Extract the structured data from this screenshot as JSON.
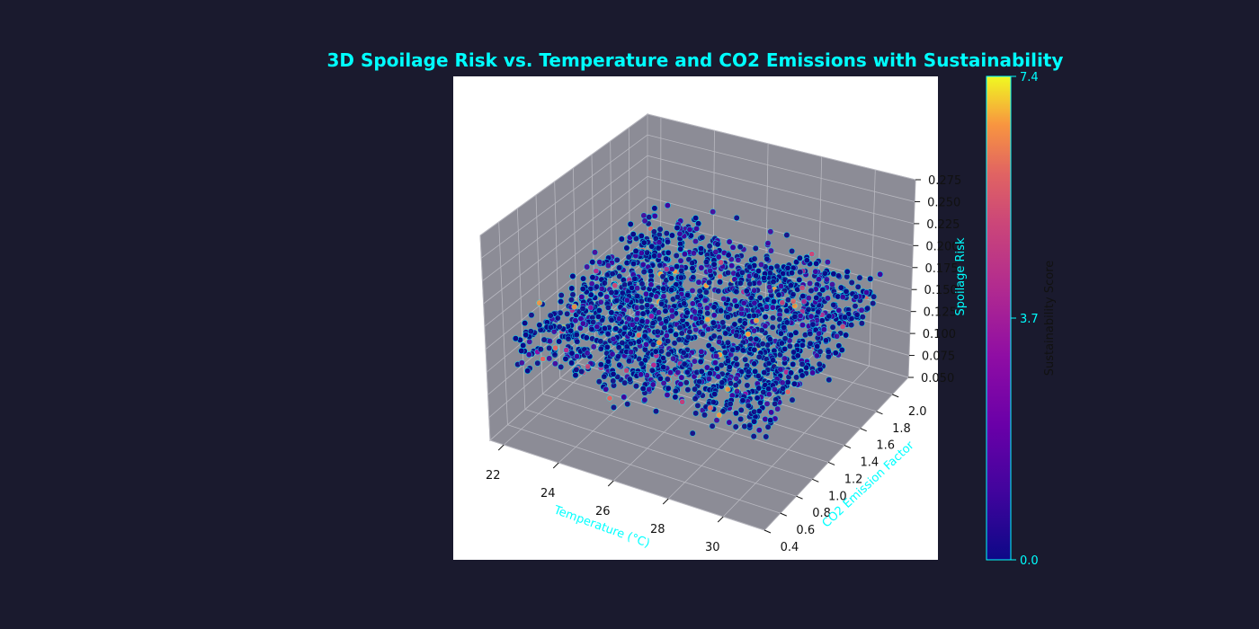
{
  "chart_data": {
    "type": "scatter",
    "projection": "3d",
    "title": "3D Spoilage Risk vs. Temperature and CO2 Emissions with Sustainability",
    "xlabel": "Temperature (°C)",
    "ylabel": "CO2 Emission Factor",
    "zlabel": "Spoilage Risk",
    "colorbar_label": "Sustainability Score",
    "xlim": [
      21.5,
      31.5
    ],
    "ylim": [
      0.4,
      2.2
    ],
    "zlim": [
      0.05,
      0.275
    ],
    "x_ticks": [
      "22",
      "24",
      "26",
      "28",
      "30"
    ],
    "y_ticks": [
      "0.4",
      "0.6",
      "0.8",
      "1.0",
      "1.2",
      "1.4",
      "1.6",
      "1.8",
      "2.0"
    ],
    "z_ticks": [
      "0.050",
      "0.075",
      "0.100",
      "0.125",
      "0.150",
      "0.175",
      "0.200",
      "0.225",
      "0.250",
      "0.275"
    ],
    "colorbar_ticks": [
      "0.0",
      "3.7",
      "7.4"
    ],
    "colorbar_range": [
      0.0,
      7.4
    ],
    "colormap": "plasma",
    "marker_edge_color": "#00ffff",
    "data_note_points": {
      "approx_count": 9000,
      "temperature_range": [
        22,
        31
      ],
      "co2_range": [
        0.5,
        2.1
      ],
      "spoilage_range": [
        0.05,
        0.26
      ],
      "sustainability_range": [
        0.0,
        7.4
      ]
    },
    "grid": true
  },
  "colors": {
    "background": "#1a1a2e",
    "accent": "#00ffff",
    "pane": "#8c8c96",
    "axes_bg": "#ffffff"
  }
}
